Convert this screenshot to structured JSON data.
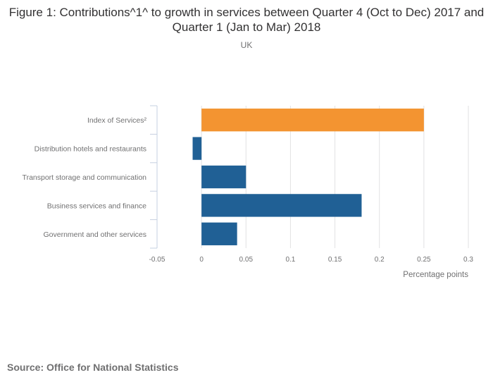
{
  "chart_data": {
    "type": "bar",
    "orientation": "horizontal",
    "title": "Figure 1: Contributions^1^ to growth in services between Quarter 4 (Oct to Dec) 2017 and Quarter 1 (Jan to Mar) 2018",
    "subtitle": "UK",
    "categories": [
      "Index of Services²",
      "Distribution hotels and restaurants",
      "Transport storage and communication",
      "Business services and finance",
      "Government and other services"
    ],
    "values": [
      0.25,
      -0.01,
      0.05,
      0.18,
      0.04
    ],
    "bar_colors": [
      "#f39431",
      "#206095",
      "#206095",
      "#206095",
      "#206095"
    ],
    "xlabel": "Percentage points",
    "ylabel": "",
    "xlim": [
      -0.05,
      0.3
    ],
    "xticks": [
      -0.05,
      0,
      0.05,
      0.1,
      0.15,
      0.2,
      0.25,
      0.3
    ],
    "xtick_labels": [
      "-0.05",
      "0",
      "0.05",
      "0.1",
      "0.15",
      "0.2",
      "0.25",
      "0.3"
    ],
    "grid": true,
    "legend": "none"
  },
  "source": "Source: Office for National Statistics"
}
